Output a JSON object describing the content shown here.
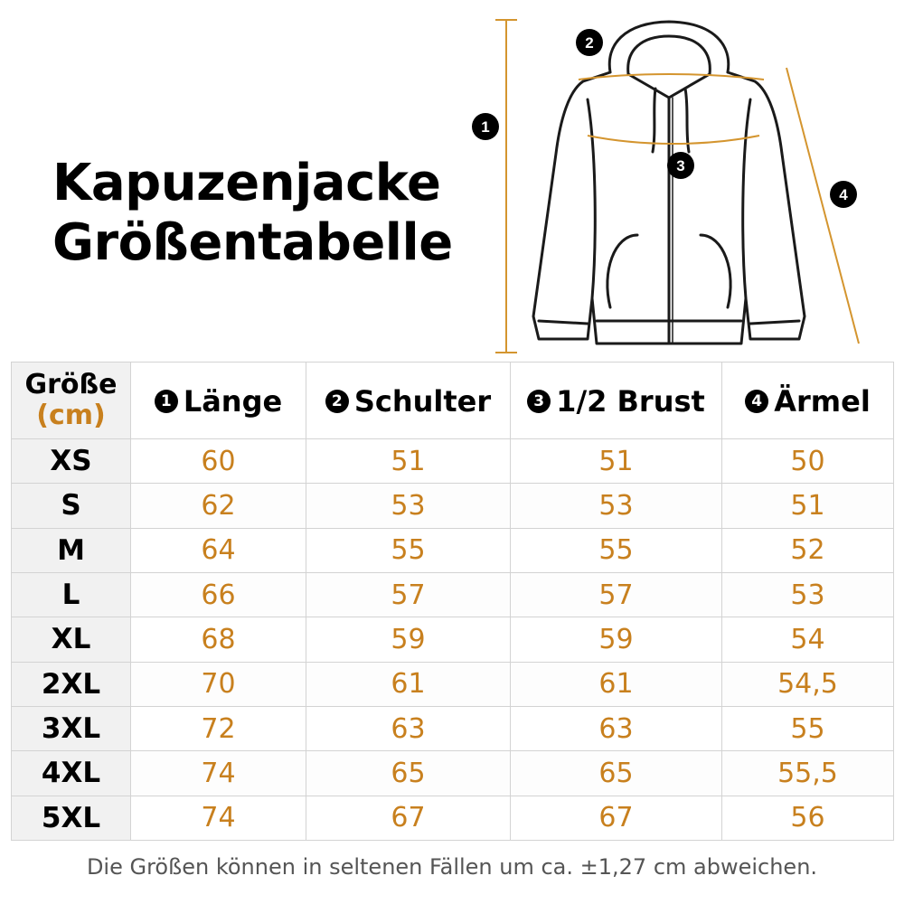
{
  "title": [
    "Kapuzenjacke",
    "Größentabelle"
  ],
  "illustration": {
    "markers": [
      "1",
      "2",
      "3",
      "4"
    ],
    "colors": {
      "outline": "#1a1a1a",
      "measure": "#d4952f",
      "marker": "#000000"
    }
  },
  "table": {
    "size_header": {
      "label": "Größe",
      "unit": "(cm)"
    },
    "columns": [
      {
        "marker": "1",
        "label": "Länge"
      },
      {
        "marker": "2",
        "label": "Schulter"
      },
      {
        "marker": "3",
        "label": "1/2 Brust"
      },
      {
        "marker": "4",
        "label": "Ärmel"
      }
    ],
    "rows": [
      {
        "size": "XS",
        "values": [
          "60",
          "51",
          "51",
          "50"
        ]
      },
      {
        "size": "S",
        "values": [
          "62",
          "53",
          "53",
          "51"
        ]
      },
      {
        "size": "M",
        "values": [
          "64",
          "55",
          "55",
          "52"
        ]
      },
      {
        "size": "L",
        "values": [
          "66",
          "57",
          "57",
          "53"
        ]
      },
      {
        "size": "XL",
        "values": [
          "68",
          "59",
          "59",
          "54"
        ]
      },
      {
        "size": "2XL",
        "values": [
          "70",
          "61",
          "61",
          "54,5"
        ]
      },
      {
        "size": "3XL",
        "values": [
          "72",
          "63",
          "63",
          "55"
        ]
      },
      {
        "size": "4XL",
        "values": [
          "74",
          "65",
          "65",
          "55,5"
        ]
      },
      {
        "size": "5XL",
        "values": [
          "74",
          "67",
          "67",
          "56"
        ]
      }
    ],
    "colors": {
      "value": "#c8801e",
      "size_column_bg": "#f1f1f1",
      "border": "#d3d3d3"
    }
  },
  "footnote": "Die Größen können in seltenen Fällen um ca. ±1,27 cm abweichen."
}
